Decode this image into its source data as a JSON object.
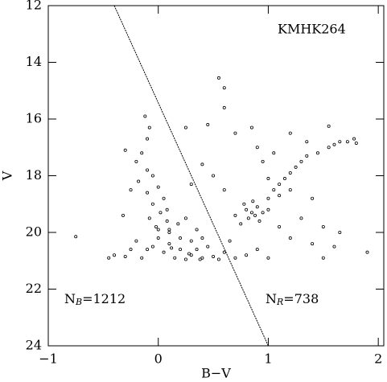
{
  "chart_data": {
    "type": "scatter",
    "name": "KMHK264",
    "annotations": [
      {
        "main": "N",
        "sub": "B",
        "rest": "=1212"
      },
      {
        "main": "N",
        "sub": "R",
        "rest": "=738"
      }
    ],
    "x_label": "B−V",
    "y_label": "V",
    "xlim": [
      -1,
      2.05
    ],
    "ylim": [
      24,
      12
    ],
    "xticks": [
      {
        "value": -1,
        "label": "−1"
      },
      0,
      1,
      2
    ],
    "yticks": [
      12,
      14,
      16,
      18,
      20,
      22,
      24
    ],
    "color": "#000000",
    "line": {
      "x": [
        -0.4,
        1
      ],
      "y": [
        12,
        24
      ]
    },
    "x": [
      -0.12,
      -0.08,
      -0.1,
      -0.15,
      -0.2,
      -0.1,
      -0.05,
      -0.18,
      0.0,
      -0.1,
      0.05,
      -0.05,
      0.02,
      -0.08,
      0.08,
      -0.02,
      0.1,
      -0.3,
      -0.25,
      -0.32,
      0.0,
      0.1,
      0.2,
      0.3,
      0.15,
      0.25,
      0.4,
      0.5,
      0.35,
      0.05,
      -0.05,
      0.45,
      0.6,
      0.55,
      0.2,
      0.3,
      0.1,
      0.0,
      0.4,
      0.65,
      0.7,
      0.8,
      0.9,
      1.0,
      -0.15,
      -0.1,
      -0.2,
      0.12,
      0.28,
      0.38,
      0.18,
      0.25,
      0.35,
      0.08,
      -0.3,
      -0.45,
      -0.4,
      -0.25,
      0.8,
      0.85,
      0.9,
      0.82,
      0.88,
      0.95,
      0.78,
      0.92,
      0.86,
      0.75,
      1.0,
      0.7,
      1.0,
      1.05,
      1.1,
      1.15,
      1.2,
      1.25,
      1.3,
      1.35,
      1.45,
      1.55,
      1.65,
      1.72,
      1.8,
      1.78,
      1.1,
      1.2,
      1.0,
      0.95,
      0.9,
      0.85,
      0.55,
      0.6,
      0.6,
      0.45,
      0.25,
      0.7,
      0.4,
      0.5,
      0.6,
      0.3,
      1.55,
      1.4,
      1.3,
      1.5,
      1.6,
      1.65,
      1.5,
      1.4,
      1.2,
      1.1,
      1.9,
      1.35,
      1.05,
      -0.75,
      1.6,
      1.2
    ],
    "y": [
      15.9,
      16.3,
      16.7,
      17.2,
      17.5,
      17.8,
      18.0,
      18.2,
      18.4,
      18.6,
      18.8,
      19.0,
      19.3,
      19.5,
      19.6,
      19.8,
      19.9,
      17.1,
      18.5,
      19.4,
      20.2,
      20.4,
      20.6,
      20.8,
      20.9,
      20.95,
      20.9,
      20.85,
      20.6,
      20.7,
      20.5,
      20.5,
      20.7,
      20.95,
      20.2,
      20.3,
      20.0,
      19.9,
      20.2,
      20.3,
      20.9,
      20.8,
      20.6,
      20.9,
      20.9,
      20.6,
      20.3,
      20.55,
      20.75,
      20.95,
      19.7,
      19.5,
      19.9,
      19.2,
      20.85,
      20.9,
      20.8,
      20.6,
      19.2,
      19.3,
      19.1,
      19.5,
      19.4,
      19.3,
      19.0,
      19.6,
      18.9,
      19.7,
      19.2,
      19.4,
      18.8,
      18.5,
      18.3,
      18.1,
      17.9,
      17.7,
      17.5,
      17.3,
      17.2,
      17.0,
      16.8,
      16.8,
      16.85,
      16.7,
      18.7,
      18.5,
      18.1,
      17.5,
      17.0,
      16.3,
      14.55,
      14.9,
      15.6,
      16.2,
      16.3,
      16.5,
      17.6,
      18.0,
      18.5,
      18.3,
      16.25,
      18.8,
      19.5,
      19.8,
      20.5,
      20.0,
      20.9,
      20.4,
      20.2,
      19.8,
      20.7,
      16.8,
      17.2,
      20.15,
      16.9,
      16.5
    ]
  }
}
